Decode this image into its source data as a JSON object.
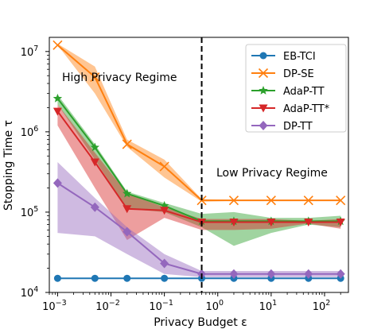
{
  "chart_data": {
    "type": "line",
    "xlabel": "Privacy Budget ε",
    "ylabel": "Stopping Time τ",
    "x_scale": "log",
    "y_scale": "log",
    "xlim": [
      0.0007,
      280
    ],
    "ylim": [
      10000,
      15000000
    ],
    "x_ticks": [
      {
        "value": 0.001,
        "base": "10",
        "exp": "−3"
      },
      {
        "value": 0.01,
        "base": "10",
        "exp": "−2"
      },
      {
        "value": 0.1,
        "base": "10",
        "exp": "−1"
      },
      {
        "value": 1,
        "base": "10",
        "exp": "0"
      },
      {
        "value": 10,
        "base": "10",
        "exp": "1"
      },
      {
        "value": 100,
        "base": "10",
        "exp": "2"
      }
    ],
    "y_ticks": [
      {
        "value": 10000,
        "base": "10",
        "exp": "4"
      },
      {
        "value": 100000,
        "base": "10",
        "exp": "5"
      },
      {
        "value": 1000000,
        "base": "10",
        "exp": "6"
      },
      {
        "value": 10000000,
        "base": "10",
        "exp": "7"
      }
    ],
    "grid": false,
    "legend_position": "top-right",
    "x": [
      0.001,
      0.005,
      0.02,
      0.1,
      0.5,
      2,
      10,
      50,
      200
    ],
    "series": [
      {
        "name": "EB-TCI",
        "color": "#1f77b4",
        "marker": "circle",
        "values": [
          15000,
          15000,
          15000,
          15000,
          15000,
          15000,
          15000,
          15000,
          15000
        ],
        "band_low": [
          15000,
          15000,
          15000,
          15000,
          15000,
          15000,
          15000,
          15000,
          15000
        ],
        "band_high": [
          15000,
          15000,
          15000,
          15000,
          15000,
          15000,
          15000,
          15000,
          15000
        ]
      },
      {
        "name": "DP-SE",
        "color": "#ff7f0e",
        "marker": "x",
        "values": [
          12000000,
          4800000,
          700000,
          370000,
          140000,
          140000,
          140000,
          140000,
          140000
        ],
        "band_low": [
          12000000,
          3000000,
          650000,
          270000,
          135000,
          138000,
          138000,
          138000,
          138000
        ],
        "band_high": [
          12500000,
          6500000,
          800000,
          450000,
          145000,
          142000,
          142000,
          142000,
          142000
        ]
      },
      {
        "name": "AdaP-TT",
        "color": "#2ca02c",
        "marker": "star",
        "values": [
          2600000,
          640000,
          170000,
          120000,
          77000,
          77000,
          77000,
          77000,
          77000
        ],
        "band_low": [
          2200000,
          450000,
          110000,
          100000,
          65000,
          38000,
          55000,
          70000,
          65000
        ],
        "band_high": [
          2900000,
          700000,
          180000,
          130000,
          95000,
          100000,
          85000,
          85000,
          90000
        ]
      },
      {
        "name": "AdaP-TT*",
        "color": "#d62728",
        "marker": "triangle-down",
        "values": [
          1800000,
          420000,
          110000,
          105000,
          75000,
          75000,
          75000,
          75000,
          75000
        ],
        "band_low": [
          1200000,
          200000,
          45000,
          85000,
          60000,
          60000,
          62000,
          72000,
          62000
        ],
        "band_high": [
          2200000,
          550000,
          170000,
          115000,
          82000,
          82000,
          82000,
          78000,
          82000
        ]
      },
      {
        "name": "DP-TT",
        "color": "#9467bd",
        "marker": "diamond",
        "values": [
          230000,
          115000,
          57000,
          23000,
          17000,
          17000,
          17000,
          17000,
          17000
        ],
        "band_low": [
          55000,
          50000,
          30000,
          17000,
          15500,
          15500,
          15500,
          15500,
          15500
        ],
        "band_high": [
          420000,
          150000,
          65000,
          30000,
          18500,
          18500,
          18500,
          18500,
          18500
        ]
      }
    ],
    "vline": {
      "x": 0.5,
      "style": "dashed",
      "color": "#000000"
    },
    "annotations": [
      {
        "id": "high",
        "text": "High Privacy Regime"
      },
      {
        "id": "low",
        "text": "Low Privacy Regime"
      }
    ]
  }
}
